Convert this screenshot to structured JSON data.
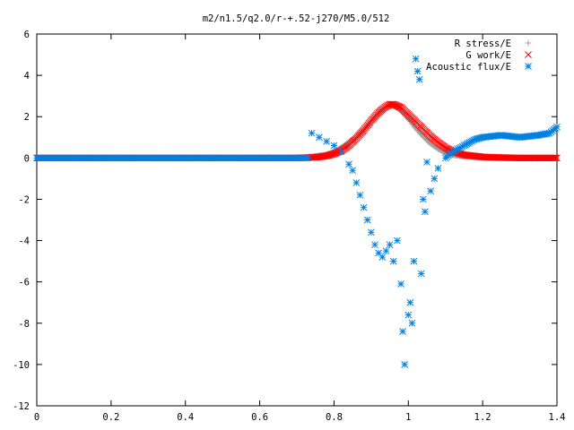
{
  "chart_data": {
    "type": "scatter",
    "title": "m2/n1.5/q2.0/r-+.52-j270/M5.0/512",
    "xlabel": "",
    "ylabel": "",
    "xlim": [
      0,
      1.4
    ],
    "ylim": [
      -12,
      6
    ],
    "xticks": [
      "0",
      "0.2",
      "0.4",
      "0.6",
      "0.8",
      "1",
      "1.2",
      "1.4"
    ],
    "yticks": [
      "6",
      "4",
      "2",
      "0",
      "-2",
      "-4",
      "-6",
      "-8",
      "-10",
      "-12"
    ],
    "legend_position": "top-right",
    "grid": false,
    "series": [
      {
        "name": "R stress/E",
        "marker": "plus",
        "color": "#a0a0a0",
        "x": [
          0,
          0.1,
          0.2,
          0.3,
          0.4,
          0.5,
          0.6,
          0.7,
          0.73,
          0.75,
          0.78,
          0.8,
          0.82,
          0.84,
          0.86,
          0.88,
          0.9,
          0.92,
          0.94,
          0.96,
          0.98,
          1.0,
          1.02,
          1.04,
          1.06,
          1.08,
          1.1,
          1.12,
          1.15,
          1.2,
          1.25,
          1.3,
          1.35,
          1.4
        ],
        "y": [
          0,
          0,
          0,
          0,
          0,
          0,
          0,
          0,
          0.02,
          0.08,
          0.15,
          0.3,
          0.5,
          0.75,
          1.0,
          1.35,
          1.75,
          2.15,
          2.45,
          2.55,
          2.3,
          1.9,
          1.45,
          1.05,
          0.7,
          0.45,
          0.25,
          0.15,
          0.07,
          0.03,
          0.01,
          0.0,
          0.0,
          0.0
        ]
      },
      {
        "name": "G work/E",
        "marker": "cross",
        "color": "#ff0000",
        "x": [
          0,
          0.1,
          0.2,
          0.3,
          0.4,
          0.5,
          0.6,
          0.7,
          0.74,
          0.76,
          0.78,
          0.8,
          0.82,
          0.84,
          0.86,
          0.88,
          0.9,
          0.92,
          0.94,
          0.95,
          0.96,
          0.98,
          1.0,
          1.02,
          1.04,
          1.06,
          1.08,
          1.1,
          1.12,
          1.15,
          1.2,
          1.25,
          1.3,
          1.35,
          1.4
        ],
        "y": [
          0,
          0,
          0,
          0,
          0,
          0,
          0,
          0,
          0.03,
          0.05,
          0.1,
          0.2,
          0.35,
          0.6,
          0.95,
          1.35,
          1.8,
          2.2,
          2.5,
          2.6,
          2.6,
          2.45,
          2.1,
          1.75,
          1.4,
          1.05,
          0.75,
          0.5,
          0.3,
          0.15,
          0.05,
          0.02,
          0.0,
          0.0,
          0.0
        ]
      },
      {
        "name": "Acoustic flux/E",
        "marker": "star",
        "color": "#0080e0",
        "x": [
          0,
          0.1,
          0.2,
          0.3,
          0.4,
          0.5,
          0.6,
          0.7,
          0.73,
          0.74,
          0.76,
          0.78,
          0.8,
          0.82,
          0.84,
          0.85,
          0.86,
          0.87,
          0.88,
          0.89,
          0.9,
          0.91,
          0.92,
          0.93,
          0.94,
          0.95,
          0.96,
          0.97,
          0.98,
          0.985,
          0.99,
          1.0,
          1.005,
          1.01,
          1.015,
          1.02,
          1.025,
          1.03,
          1.035,
          1.04,
          1.045,
          1.05,
          1.06,
          1.07,
          1.08,
          1.1,
          1.12,
          1.15,
          1.18,
          1.2,
          1.25,
          1.3,
          1.35,
          1.38,
          1.4
        ],
        "y": [
          0,
          0,
          0,
          0,
          0,
          0,
          0,
          0,
          0.0,
          1.2,
          1.0,
          0.8,
          0.6,
          0.3,
          -0.3,
          -0.6,
          -1.2,
          -1.8,
          -2.4,
          -3.0,
          -3.6,
          -4.2,
          -4.6,
          -4.8,
          -4.5,
          -4.2,
          -5.0,
          -4.0,
          -6.1,
          -8.4,
          -10.0,
          -7.6,
          -7.0,
          -8.0,
          -5.0,
          4.8,
          4.2,
          3.8,
          -5.6,
          -2.0,
          -2.6,
          -0.2,
          -1.6,
          -1.0,
          -0.5,
          0.0,
          0.3,
          0.6,
          0.9,
          1.0,
          1.1,
          1.0,
          1.1,
          1.2,
          1.5
        ]
      }
    ]
  }
}
